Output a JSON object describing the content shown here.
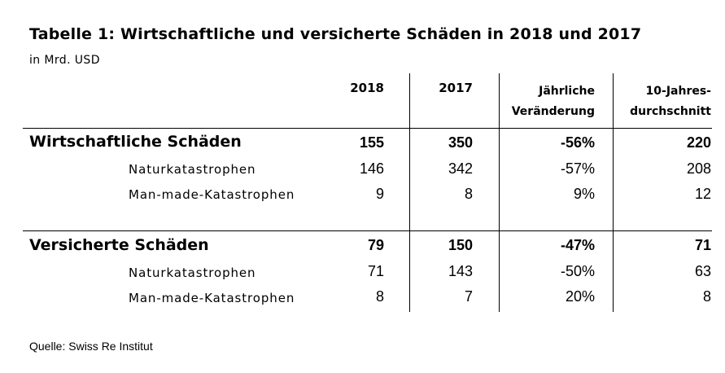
{
  "title": "Tabelle 1: Wirtschaftliche und versicherte Schäden in  2018 und 2017",
  "subtitle": "in Mrd. USD",
  "source": "Quelle: Swiss Re Institut",
  "columns": {
    "c2018": "2018",
    "c2017": "2017",
    "change_line1": "Jährliche",
    "change_line2": "Veränderung",
    "avg_line1": "10-Jahres-",
    "avg_line2": "durchschnitt"
  },
  "groups": [
    {
      "label": "Wirtschaftliche Schäden",
      "v2018": "155",
      "v2017": "350",
      "change": "-56%",
      "avg": "220",
      "rows": [
        {
          "label": "Naturkatastrophen",
          "v2018": "146",
          "v2017": "342",
          "change": "-57%",
          "avg": "208"
        },
        {
          "label": "Man-made-Katastrophen",
          "v2018": "9",
          "v2017": "8",
          "change": "9%",
          "avg": "12"
        }
      ]
    },
    {
      "label": "Versicherte Schäden",
      "v2018": "79",
      "v2017": "150",
      "change": "-47%",
      "avg": "71",
      "rows": [
        {
          "label": "Naturkatastrophen",
          "v2018": "71",
          "v2017": "143",
          "change": "-50%",
          "avg": "63"
        },
        {
          "label": "Man-made-Katastrophen",
          "v2018": "8",
          "v2017": "7",
          "change": "20%",
          "avg": "8"
        }
      ]
    }
  ]
}
